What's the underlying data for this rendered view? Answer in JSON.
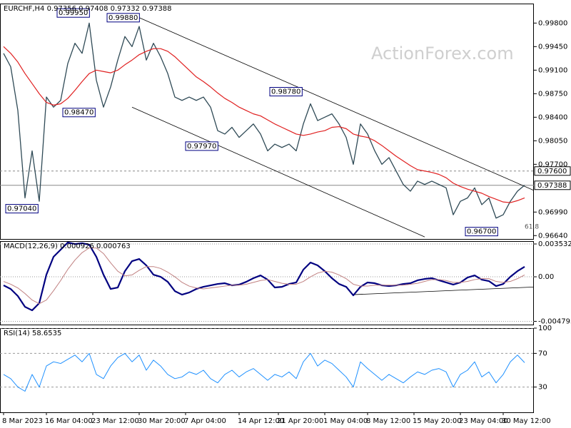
{
  "chart_data": [
    {
      "type": "line",
      "title": "EURCHF,H4 0.97356 0.97408 0.97332 0.97388",
      "watermark": "ActionForex.com",
      "xlim": [
        0,
        74
      ],
      "ylim": [
        0.9659,
        1.0009
      ],
      "yticks": [
        {
          "value": 0.998,
          "label": "0.99800"
        },
        {
          "value": 0.9945,
          "label": "0.99450"
        },
        {
          "value": 0.991,
          "label": "0.99100"
        },
        {
          "value": 0.9875,
          "label": "0.98750"
        },
        {
          "value": 0.984,
          "label": "0.98400"
        },
        {
          "value": 0.9805,
          "label": "0.98050"
        },
        {
          "value": 0.977,
          "label": "0.97700"
        },
        {
          "value": 0.9699,
          "label": "0.96990"
        },
        {
          "value": 0.9664,
          "label": "0.96640"
        }
      ],
      "series": [
        {
          "color": "#2f4a56",
          "width": 1.3,
          "values": [
            0.9935,
            0.9915,
            0.985,
            0.972,
            0.979,
            0.9715,
            0.987,
            0.9855,
            0.9865,
            0.992,
            0.995,
            0.9935,
            0.998,
            0.9895,
            0.9855,
            0.9885,
            0.9925,
            0.996,
            0.9945,
            0.9975,
            0.9925,
            0.995,
            0.993,
            0.9905,
            0.987,
            0.9865,
            0.987,
            0.9865,
            0.987,
            0.9855,
            0.982,
            0.9815,
            0.9825,
            0.981,
            0.982,
            0.983,
            0.9815,
            0.979,
            0.98,
            0.9795,
            0.98,
            0.979,
            0.983,
            0.986,
            0.9835,
            0.984,
            0.9845,
            0.983,
            0.981,
            0.977,
            0.983,
            0.9815,
            0.979,
            0.977,
            0.978,
            0.976,
            0.974,
            0.973,
            0.9745,
            0.974,
            0.9745,
            0.974,
            0.9735,
            0.9695,
            0.9715,
            0.972,
            0.9735,
            0.971,
            0.972,
            0.969,
            0.9695,
            0.9715,
            0.973,
            0.9739
          ]
        },
        {
          "color": "#e02020",
          "width": 1.2,
          "values": [
            0.9945,
            0.9935,
            0.9922,
            0.9905,
            0.989,
            0.9875,
            0.9862,
            0.9858,
            0.986,
            0.9868,
            0.988,
            0.9893,
            0.9905,
            0.991,
            0.9908,
            0.9906,
            0.991,
            0.9918,
            0.9925,
            0.9933,
            0.9938,
            0.9942,
            0.9942,
            0.9938,
            0.993,
            0.992,
            0.991,
            0.99,
            0.9893,
            0.9885,
            0.9876,
            0.9868,
            0.9862,
            0.9855,
            0.985,
            0.9845,
            0.9842,
            0.9836,
            0.983,
            0.9825,
            0.982,
            0.9815,
            0.9813,
            0.9815,
            0.9818,
            0.982,
            0.9825,
            0.9826,
            0.9823,
            0.9815,
            0.9812,
            0.981,
            0.9805,
            0.9798,
            0.979,
            0.9782,
            0.9775,
            0.9768,
            0.9762,
            0.976,
            0.9758,
            0.9755,
            0.975,
            0.9742,
            0.9737,
            0.9733,
            0.973,
            0.9727,
            0.9722,
            0.9718,
            0.9714,
            0.9713,
            0.9716,
            0.972
          ]
        }
      ],
      "levels": [
        {
          "value": 0.976,
          "label": "0.97600",
          "style": "dashed"
        },
        {
          "value": 0.97388,
          "label": "0.97388",
          "style": "solid"
        }
      ],
      "trendlines": [
        {
          "x": [
            19,
            75
          ],
          "y": [
            0.9988,
            0.9728
          ]
        },
        {
          "x": [
            18,
            59
          ],
          "y": [
            0.9855,
            0.9662
          ]
        }
      ],
      "annotations": [
        {
          "label": "0.99950",
          "x": 7.5,
          "y": 0.9995
        },
        {
          "label": "0.99880",
          "x": 14.5,
          "y": 0.9988
        },
        {
          "label": "0.98470",
          "x": 8.3,
          "y": 0.9847
        },
        {
          "label": "0.98780",
          "x": 37.3,
          "y": 0.9878
        },
        {
          "label": "0.97970",
          "x": 25.5,
          "y": 0.9797
        },
        {
          "label": "0.97040",
          "x": 0.3,
          "y": 0.9704
        },
        {
          "label": "0.96700",
          "x": 64.7,
          "y": 0.967
        }
      ],
      "notes": [
        {
          "label": "61.8",
          "x": 73,
          "y": 0.9677
        }
      ]
    },
    {
      "type": "line",
      "title": "MACD(12,26,9) 0.000926 0.000763",
      "grid": "dotted",
      "xlim": [
        0,
        74
      ],
      "ylim": [
        -0.00514,
        0.00384
      ],
      "yticks": [
        0.003532,
        {
          "value": 0,
          "label": "0.00"
        },
        -0.004793
      ],
      "series": [
        {
          "color": "#000080",
          "width": 2.2,
          "values": [
            -0.00092,
            -0.00131,
            -0.00207,
            -0.00323,
            -0.00361,
            -0.00284,
            0.00023,
            0.00215,
            0.00292,
            0.00369,
            0.00353,
            0.00361,
            0.00346,
            0.00215,
            0.00023,
            -0.00131,
            -0.00115,
            0.00061,
            0.00169,
            0.00192,
            0.00123,
            0.00023,
            0,
            -0.00054,
            -0.00154,
            -0.00192,
            -0.00169,
            -0.00131,
            -0.00108,
            -0.00092,
            -0.00077,
            -0.00069,
            -0.00092,
            -0.00084,
            -0.00054,
            -0.00015,
            0.00015,
            -0.00031,
            -0.00115,
            -0.00108,
            -0.00077,
            -0.00061,
            0.00077,
            0.00154,
            0.00123,
            0.00061,
            -0.00015,
            -0.00077,
            -0.00108,
            -0.002,
            -0.00108,
            -0.00061,
            -0.00069,
            -0.00092,
            -0.001,
            -0.00092,
            -0.00077,
            -0.00069,
            -0.00038,
            -0.00023,
            -0.00015,
            -0.00038,
            -0.00061,
            -0.00084,
            -0.00061,
            -8e-05,
            0.00015,
            -0.00031,
            -0.00046,
            -0.001,
            -0.00077,
            0,
            0.00061,
            0.00108
          ]
        },
        {
          "color": "#c08080",
          "width": 1,
          "values": [
            -0.0005,
            -0.0008,
            -0.0012,
            -0.0018,
            -0.0025,
            -0.0029,
            -0.0025,
            -0.0015,
            -0.0004,
            0.0008,
            0.0018,
            0.0026,
            0.0031,
            0.0031,
            0.0025,
            0.0015,
            0.0006,
            0.0001,
            0.0002,
            0.0007,
            0.0011,
            0.0011,
            0.0009,
            0.0005,
            0,
            -0.0006,
            -0.001,
            -0.0012,
            -0.0013,
            -0.0012,
            -0.0011,
            -0.001,
            -0.0009,
            -0.0009,
            -0.0008,
            -0.0006,
            -0.0004,
            -0.0003,
            -0.0005,
            -0.0007,
            -0.0008,
            -0.0008,
            -0.0005,
            0,
            0.0004,
            0.0006,
            0.0005,
            0.0002,
            -0.0002,
            -0.0008,
            -0.001,
            -0.001,
            -0.0009,
            -0.0009,
            -0.0009,
            -0.0009,
            -0.0009,
            -0.0008,
            -0.0007,
            -0.0005,
            -0.0003,
            -0.0003,
            -0.0004,
            -0.0006,
            -0.0006,
            -0.0005,
            -0.0003,
            -0.0002,
            -0.0002,
            -0.0005,
            -0.0006,
            -0.0005,
            -0.0002,
            0.0002
          ]
        }
      ],
      "trendlines": [
        {
          "x": [
            49,
            75
          ],
          "y": [
            -0.00192,
            -0.00108
          ]
        }
      ]
    },
    {
      "type": "line",
      "title": "RSI(14) 58.6535",
      "grid": "dashed",
      "xlim": [
        0,
        74
      ],
      "ylim": [
        0,
        100
      ],
      "yticks": [
        100,
        70,
        30
      ],
      "series": [
        {
          "color": "#1e90ff",
          "width": 1,
          "values": [
            45,
            40,
            30,
            25,
            45,
            30,
            55,
            60,
            58,
            63,
            68,
            60,
            70,
            45,
            40,
            55,
            65,
            70,
            60,
            68,
            50,
            62,
            55,
            45,
            40,
            42,
            48,
            45,
            50,
            40,
            35,
            45,
            50,
            42,
            48,
            52,
            45,
            38,
            45,
            42,
            48,
            40,
            60,
            70,
            55,
            62,
            58,
            50,
            42,
            30,
            60,
            52,
            45,
            38,
            45,
            40,
            35,
            42,
            48,
            45,
            50,
            52,
            48,
            30,
            45,
            50,
            60,
            42,
            48,
            35,
            45,
            60,
            68,
            59
          ]
        }
      ],
      "xticks": [
        {
          "value": 0,
          "label": "8 Mar 2023"
        },
        {
          "value": 6,
          "label": "16 Mar 04:00"
        },
        {
          "value": 12.5,
          "label": "23 Mar 12:00"
        },
        {
          "value": 19,
          "label": "30 Mar 20:00"
        },
        {
          "value": 25.5,
          "label": "7 Apr 04:00"
        },
        {
          "value": 33,
          "label": "14 Apr 12:00"
        },
        {
          "value": 38.5,
          "label": "21 Apr 20:00"
        },
        {
          "value": 45,
          "label": "1 May 04:00"
        },
        {
          "value": 51,
          "label": "8 May 12:00"
        },
        {
          "value": 57.5,
          "label": "15 May 20:00"
        },
        {
          "value": 64,
          "label": "23 May 04:00"
        },
        {
          "value": 70,
          "label": "30 May 12:00"
        }
      ]
    }
  ]
}
